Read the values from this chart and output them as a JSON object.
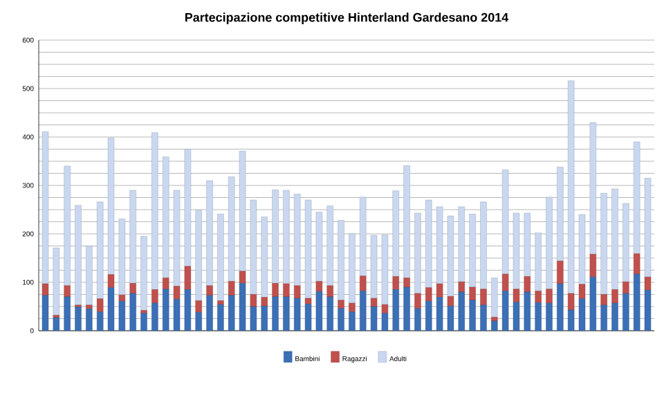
{
  "chart_data": {
    "type": "bar",
    "title": "Partecipazione competitive Hinterland Gardesano 2014",
    "stacked": true,
    "categories": [
      null,
      null,
      null,
      null,
      null,
      null,
      null,
      null,
      null,
      null,
      null,
      null,
      null,
      null,
      null,
      null,
      null,
      null,
      null,
      null,
      null,
      null,
      null,
      null,
      null,
      null,
      null,
      null,
      null,
      null,
      null,
      null,
      null,
      null,
      null,
      null,
      null,
      null,
      null,
      null,
      null,
      null,
      null,
      null,
      null,
      null,
      null,
      null,
      null,
      null,
      null,
      null,
      null,
      null,
      null,
      null
    ],
    "series": [
      {
        "name": "Bambini",
        "color": "#3b6fb6",
        "values": [
          73,
          27,
          70,
          49,
          45,
          39,
          89,
          61,
          77,
          36,
          57,
          86,
          65,
          85,
          38,
          73,
          54,
          73,
          98,
          50,
          51,
          70,
          70,
          67,
          55,
          81,
          70,
          46,
          39,
          82,
          50,
          36,
          85,
          90,
          46,
          61,
          69,
          51,
          80,
          63,
          53,
          20,
          82,
          59,
          80,
          58,
          57,
          97,
          43,
          66,
          111,
          53,
          57,
          77,
          117,
          84
        ]
      },
      {
        "name": "Ragazzi",
        "color": "#c0504d",
        "values": [
          24,
          5,
          23,
          4,
          8,
          27,
          27,
          13,
          21,
          6,
          28,
          23,
          27,
          48,
          24,
          20,
          8,
          29,
          25,
          25,
          18,
          28,
          27,
          26,
          12,
          21,
          23,
          17,
          18,
          31,
          17,
          18,
          27,
          19,
          31,
          28,
          28,
          20,
          21,
          27,
          33,
          8,
          35,
          27,
          32,
          24,
          29,
          47,
          34,
          30,
          47,
          22,
          28,
          24,
          42,
          27
        ]
      },
      {
        "name": "Adulti",
        "color": "#c9d8f0",
        "values": [
          314,
          139,
          247,
          206,
          122,
          200,
          282,
          157,
          192,
          153,
          324,
          250,
          198,
          242,
          187,
          217,
          179,
          216,
          248,
          195,
          166,
          193,
          193,
          189,
          203,
          143,
          165,
          165,
          144,
          163,
          130,
          144,
          177,
          232,
          166,
          181,
          159,
          166,
          155,
          151,
          180,
          81,
          215,
          157,
          131,
          120,
          190,
          194,
          439,
          144,
          272,
          209,
          208,
          162,
          231,
          204
        ]
      }
    ],
    "ylim": [
      0,
      600
    ],
    "yticks": [
      0,
      {
        "value": 25,
        "label": null
      },
      {
        "value": 50,
        "label": null
      },
      {
        "value": 75,
        "label": null
      },
      100,
      {
        "value": 125,
        "label": null
      },
      {
        "value": 150,
        "label": null
      },
      {
        "value": 175,
        "label": null
      },
      200,
      {
        "value": 225,
        "label": null
      },
      {
        "value": 250,
        "label": null
      },
      {
        "value": 275,
        "label": null
      },
      300,
      {
        "value": 325,
        "label": null
      },
      {
        "value": 350,
        "label": null
      },
      {
        "value": 375,
        "label": null
      },
      400,
      {
        "value": 425,
        "label": null
      },
      {
        "value": 450,
        "label": null
      },
      {
        "value": 475,
        "label": null
      },
      500,
      {
        "value": 525,
        "label": null
      },
      {
        "value": 550,
        "label": null
      },
      {
        "value": 575,
        "label": null
      },
      600
    ],
    "grid": "y",
    "legend": "bottom"
  }
}
